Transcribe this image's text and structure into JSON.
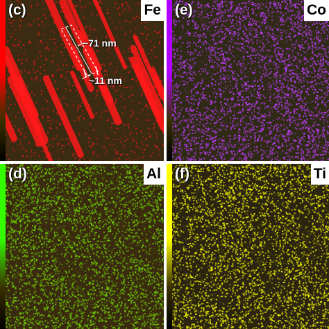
{
  "panels": {
    "c": {
      "label": "(c)",
      "element": "Fe",
      "colors": {
        "background": "#3a2b12",
        "signal": "#ff1a1a",
        "colorbar_top": "#ff0000"
      },
      "annotations": {
        "length": "~71 nm",
        "width": "~11 nm"
      }
    },
    "e": {
      "label": "(e)",
      "element": "Co",
      "colors": {
        "background": "#2e2a14",
        "signal": "#c03cff",
        "colorbar_top": "#b000ff"
      }
    },
    "d": {
      "label": "(d)",
      "element": "Al",
      "colors": {
        "background": "#3a2a10",
        "signal": "#6fd400",
        "colorbar_top": "#33ff00"
      }
    },
    "f": {
      "label": "(f)",
      "element": "Ti",
      "colors": {
        "background": "#2a2410",
        "signal": "#f2f200",
        "colorbar_top": "#ffff00"
      }
    }
  }
}
